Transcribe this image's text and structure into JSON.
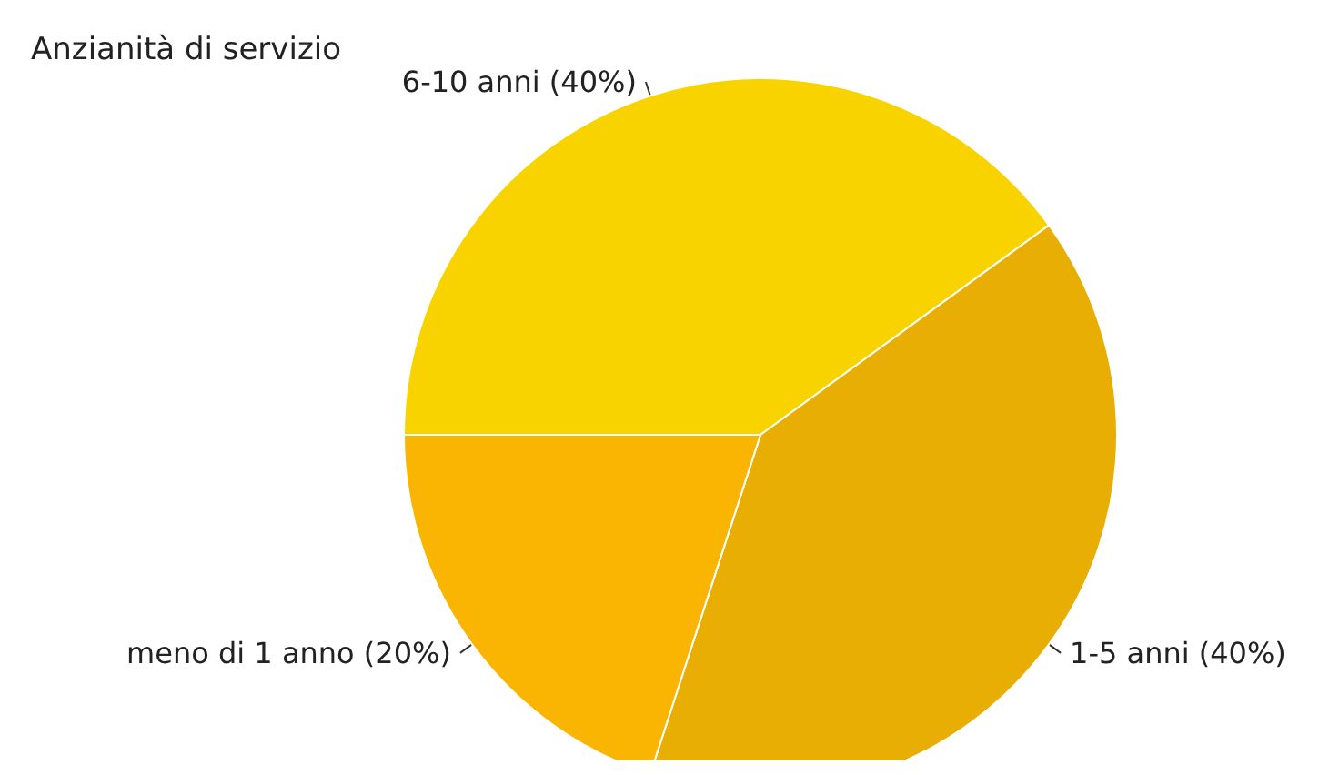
{
  "chart_data": {
    "type": "pie",
    "title": "Anzianità di servizio",
    "categories": [
      "6-10 anni (40%)",
      "1-5 anni (40%)",
      "meno di 1 anno (20%)"
    ],
    "values": [
      40,
      40,
      20
    ],
    "colors": [
      "#f9d300",
      "#e8ae04",
      "#fab503"
    ]
  }
}
